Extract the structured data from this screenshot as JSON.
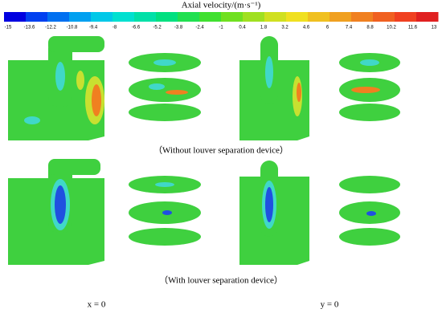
{
  "colorbar": {
    "title": "Axial velocity/(m·s⁻¹)",
    "ticks": [
      "-15",
      "-13.6",
      "-12.2",
      "-10.8",
      "-9.4",
      "-8",
      "-6.6",
      "-5.2",
      "-3.8",
      "-2.4",
      "-1",
      "0.4",
      "1.8",
      "3.2",
      "4.6",
      "6",
      "7.4",
      "8.8",
      "10.2",
      "11.6",
      "13"
    ]
  },
  "captions": {
    "top_row": "（Without louver separation device）",
    "bottom_row": "（With louver separation device）"
  },
  "columns": {
    "left": "x = 0",
    "right": "y = 0"
  }
}
